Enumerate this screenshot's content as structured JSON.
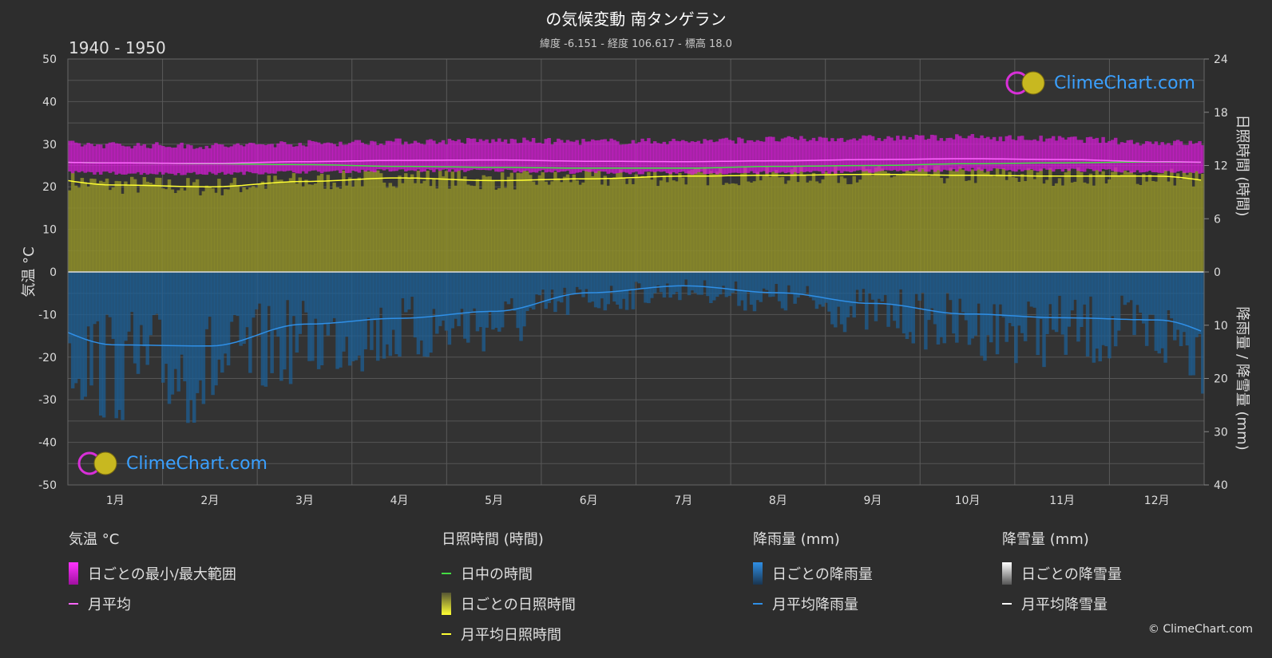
{
  "header": {
    "title": "の気候変動 南タンゲラン",
    "subtitle": "緯度 -6.151 - 経度 106.617 - 標高 18.0",
    "period": "1940 - 1950"
  },
  "logo_text": "ClimeChart.com",
  "copyright": "© ClimeChart.com",
  "legend": {
    "temperature": {
      "head": "気温 °C",
      "range": "日ごとの最小/最大範囲",
      "mean": "月平均"
    },
    "sunshine": {
      "head": "日照時間 (時間)",
      "daylight": "日中の時間",
      "daily": "日ごとの日照時間",
      "mean": "月平均日照時間"
    },
    "rain": {
      "head": "降雨量 (mm)",
      "daily": "日ごとの降雨量",
      "mean": "月平均降雨量"
    },
    "snow": {
      "head": "降雪量 (mm)",
      "daily": "日ごとの降雪量",
      "mean": "月平均降雪量"
    }
  },
  "colors": {
    "background": "#2d2d2d",
    "temp_range": "#d81bd8",
    "temp_mean": "#ff66ff",
    "daylight": "#44dd44",
    "sunshine_fill": "#8d8d2a",
    "sunshine_mean": "#ffff33",
    "rain_fill": "#1e5f94",
    "rain_mean": "#2f8fe6",
    "snow_mean": "#ffffff",
    "grid": "#555555"
  },
  "chart_data": {
    "type": "area",
    "categories": [
      "1月",
      "2月",
      "3月",
      "4月",
      "5月",
      "6月",
      "7月",
      "8月",
      "9月",
      "10月",
      "11月",
      "12月"
    ],
    "y_left_label": "気温 °C",
    "y_left_range": [
      -50,
      50
    ],
    "y_left_ticks": [
      "50",
      "40",
      "30",
      "20",
      "10",
      "0",
      "-10",
      "-20",
      "-30",
      "-40",
      "-50"
    ],
    "y_right_top_label": "日照時間 (時間)",
    "y_right_top_range": [
      0,
      24
    ],
    "y_right_top_ticks": [
      "24",
      "18",
      "12",
      "6",
      "0"
    ],
    "y_right_bottom_label": "降雨量 / 降雪量 (mm)",
    "y_right_bottom_range": [
      0,
      40
    ],
    "y_right_bottom_ticks": [
      "0",
      "10",
      "20",
      "30",
      "40"
    ],
    "grid": true,
    "series": [
      {
        "name": "日ごとの最小/最大範囲",
        "unit": "°C",
        "min": [
          23.2,
          23.1,
          23.5,
          23.8,
          23.8,
          23.4,
          23.2,
          23.3,
          23.6,
          24.0,
          23.9,
          23.6
        ],
        "max": [
          29.8,
          29.6,
          30.2,
          30.6,
          30.8,
          30.6,
          30.7,
          31.1,
          31.4,
          31.6,
          31.2,
          30.4
        ]
      },
      {
        "name": "月平均",
        "unit": "°C",
        "values": [
          25.6,
          25.5,
          25.9,
          26.2,
          26.3,
          26.0,
          25.9,
          26.1,
          26.4,
          26.6,
          26.4,
          25.9
        ]
      },
      {
        "name": "日中の時間",
        "unit": "時間",
        "values": [
          12.3,
          12.2,
          12.1,
          11.9,
          11.8,
          11.7,
          11.7,
          11.9,
          12.0,
          12.2,
          12.3,
          12.4
        ]
      },
      {
        "name": "月平均日照時間",
        "unit": "時間",
        "values": [
          9.8,
          9.6,
          10.2,
          10.6,
          10.3,
          10.5,
          10.8,
          10.9,
          11.0,
          10.9,
          10.8,
          10.8
        ]
      },
      {
        "name": "月平均降雨量",
        "unit": "mm",
        "values": [
          13.7,
          13.9,
          9.8,
          8.7,
          7.4,
          3.9,
          2.6,
          3.9,
          5.9,
          7.9,
          8.6,
          9.0
        ]
      }
    ]
  }
}
